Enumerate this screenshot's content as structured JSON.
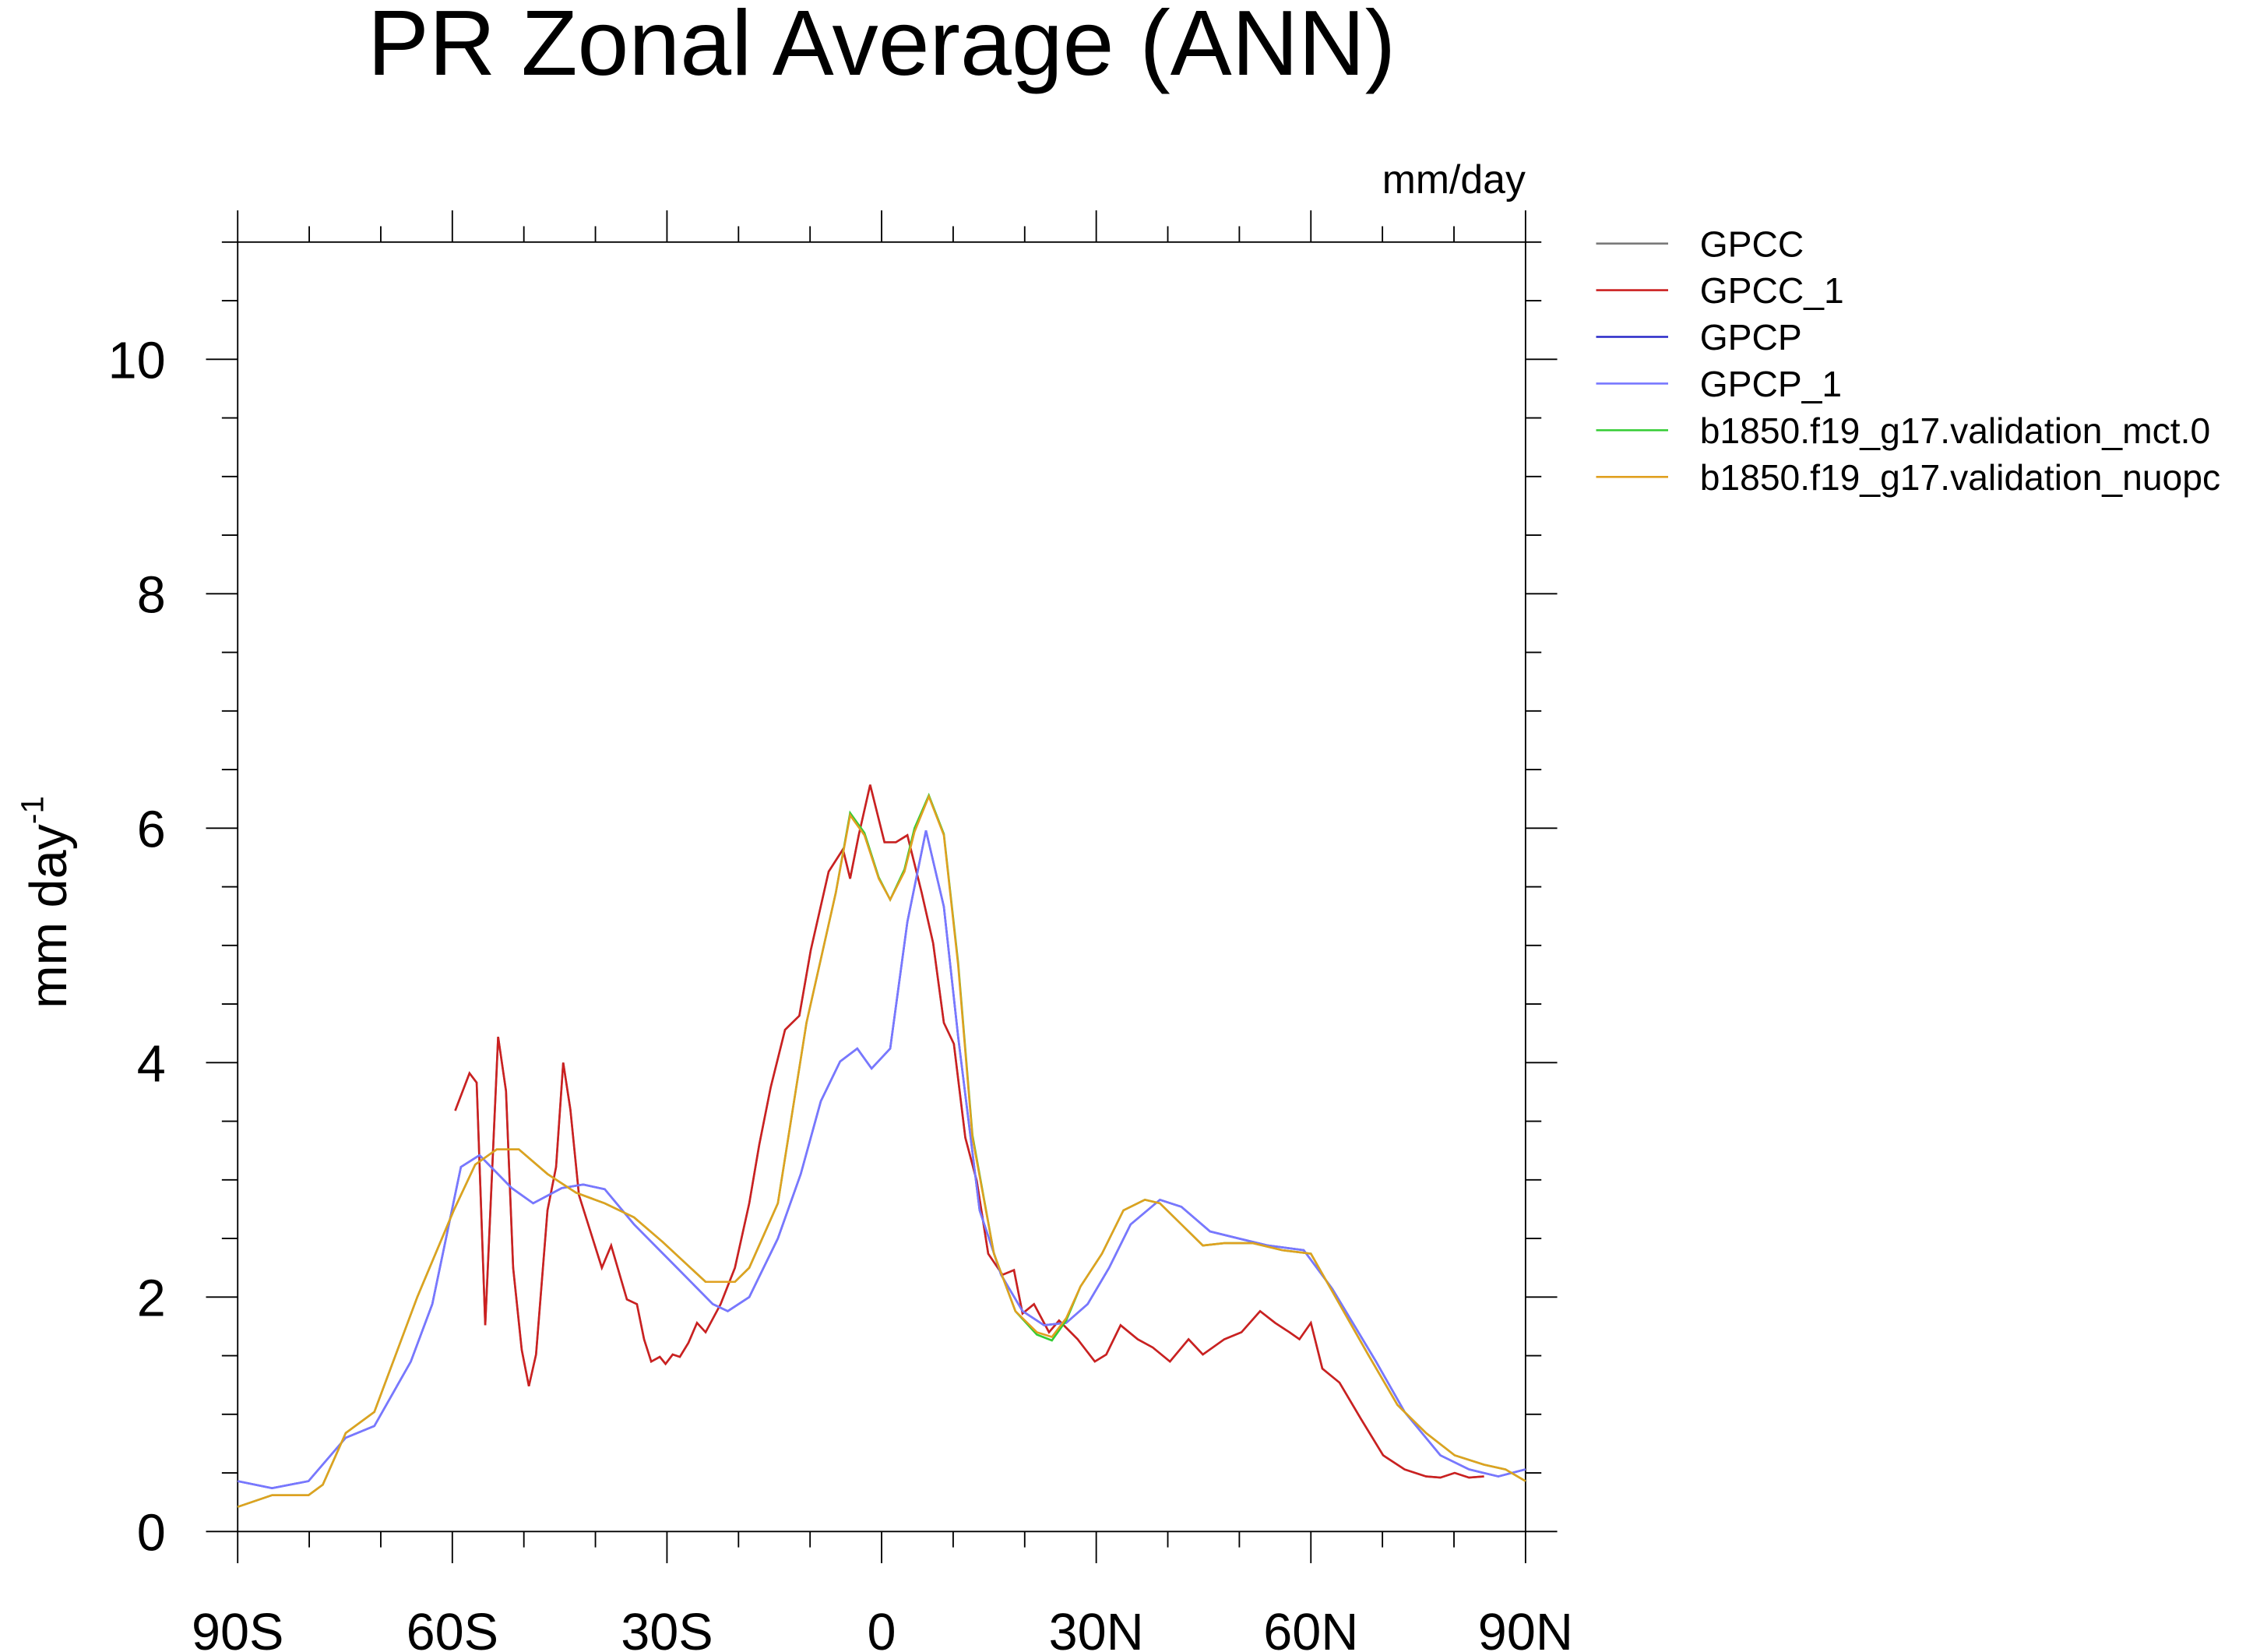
{
  "chart_data": {
    "type": "line",
    "title": "PR Zonal Average (ANN)",
    "units": "mm/day",
    "ylabel": "mm day",
    "ylabel_sup": "-1",
    "xlim": [
      -90,
      90
    ],
    "xticks": [
      {
        "value": -90,
        "label": "90S"
      },
      {
        "value": -60,
        "label": "60S"
      },
      {
        "value": -30,
        "label": "30S"
      },
      0,
      {
        "value": 30,
        "label": "30N"
      },
      {
        "value": 60,
        "label": "60N"
      },
      {
        "value": 90,
        "label": "90N"
      }
    ],
    "ylim": [
      0,
      11
    ],
    "yticks": [
      0,
      2,
      4,
      6,
      8,
      10
    ],
    "legend": "right",
    "series": [
      {
        "name": "GPCC",
        "color": "#7a7a7a",
        "x": [
          -59.6,
          -57.6,
          -56.6,
          -55.4,
          -53.6,
          -52.5,
          -51.5,
          -50.3,
          -49.3,
          -48.3,
          -46.7,
          -45.5,
          -44.5,
          -43.5,
          -42.3,
          -40.7,
          -39.1,
          -37.8,
          -35.6,
          -34.2,
          -33.2,
          -32.2,
          -31.0,
          -30.2,
          -29.2,
          -28.2,
          -27.0,
          -25.8,
          -24.6,
          -22.5,
          -20.5,
          -18.5,
          -17.1,
          -15.5,
          -13.5,
          -11.5,
          -9.9,
          -7.4,
          -5.4,
          -4.4,
          -3.2,
          -1.6,
          0.4,
          2.0,
          3.6,
          5.6,
          7.2,
          8.7,
          10.1,
          11.7,
          13.3,
          14.9,
          16.9,
          18.5,
          19.7,
          21.3,
          23.4,
          24.8,
          27.4,
          29.8,
          31.4,
          33.4,
          35.8,
          37.9,
          40.3,
          42.9,
          44.9,
          47.9,
          50.3,
          52.9,
          55.0,
          57.0,
          58.4,
          60.0,
          61.6,
          64.0,
          67.0,
          70.1,
          73.1,
          76.1,
          78.1,
          80.1,
          82.1,
          84.2
        ],
        "values": [
          3.59,
          3.91,
          3.83,
          1.76,
          4.22,
          3.76,
          2.25,
          1.55,
          1.24,
          1.51,
          2.74,
          3.11,
          4.0,
          3.6,
          2.87,
          2.56,
          2.25,
          2.44,
          1.98,
          1.94,
          1.64,
          1.45,
          1.49,
          1.43,
          1.51,
          1.49,
          1.61,
          1.78,
          1.7,
          1.94,
          2.25,
          2.8,
          3.3,
          3.79,
          4.28,
          4.4,
          4.96,
          5.63,
          5.82,
          5.57,
          5.94,
          6.37,
          5.88,
          5.88,
          5.94,
          5.45,
          5.02,
          4.34,
          4.16,
          3.36,
          2.99,
          2.37,
          2.19,
          2.23,
          1.86,
          1.94,
          1.7,
          1.8,
          1.64,
          1.45,
          1.51,
          1.76,
          1.64,
          1.57,
          1.45,
          1.64,
          1.51,
          1.64,
          1.7,
          1.88,
          1.78,
          1.7,
          1.64,
          1.78,
          1.39,
          1.27,
          0.96,
          0.65,
          0.53,
          0.47,
          0.46,
          0.5,
          0.46,
          0.47
        ]
      },
      {
        "name": "GPCC_1",
        "color": "#cc2020",
        "x": [
          -59.6,
          -57.6,
          -56.6,
          -55.4,
          -53.6,
          -52.5,
          -51.5,
          -50.3,
          -49.3,
          -48.3,
          -46.7,
          -45.5,
          -44.5,
          -43.5,
          -42.3,
          -40.7,
          -39.1,
          -37.8,
          -35.6,
          -34.2,
          -33.2,
          -32.2,
          -31.0,
          -30.2,
          -29.2,
          -28.2,
          -27.0,
          -25.8,
          -24.6,
          -22.5,
          -20.5,
          -18.5,
          -17.1,
          -15.5,
          -13.5,
          -11.5,
          -9.9,
          -7.4,
          -5.4,
          -4.4,
          -3.2,
          -1.6,
          0.4,
          2.0,
          3.6,
          5.6,
          7.2,
          8.7,
          10.1,
          11.7,
          13.3,
          14.9,
          16.9,
          18.5,
          19.7,
          21.3,
          23.4,
          24.8,
          27.4,
          29.8,
          31.4,
          33.4,
          35.8,
          37.9,
          40.3,
          42.9,
          44.9,
          47.9,
          50.3,
          52.9,
          55.0,
          57.0,
          58.4,
          60.0,
          61.6,
          64.0,
          67.0,
          70.1,
          73.1,
          76.1,
          78.1,
          80.1,
          82.1,
          84.2
        ],
        "values": [
          3.59,
          3.91,
          3.83,
          1.76,
          4.22,
          3.76,
          2.25,
          1.55,
          1.24,
          1.51,
          2.74,
          3.11,
          4.0,
          3.6,
          2.87,
          2.56,
          2.25,
          2.44,
          1.98,
          1.94,
          1.64,
          1.45,
          1.49,
          1.43,
          1.51,
          1.49,
          1.61,
          1.78,
          1.7,
          1.94,
          2.25,
          2.8,
          3.3,
          3.79,
          4.28,
          4.4,
          4.96,
          5.63,
          5.82,
          5.57,
          5.94,
          6.37,
          5.88,
          5.88,
          5.94,
          5.45,
          5.02,
          4.34,
          4.16,
          3.36,
          2.99,
          2.37,
          2.19,
          2.23,
          1.86,
          1.94,
          1.7,
          1.8,
          1.64,
          1.45,
          1.51,
          1.76,
          1.64,
          1.57,
          1.45,
          1.64,
          1.51,
          1.64,
          1.7,
          1.88,
          1.78,
          1.7,
          1.64,
          1.78,
          1.39,
          1.27,
          0.96,
          0.65,
          0.53,
          0.47,
          0.46,
          0.5,
          0.46,
          0.47
        ]
      },
      {
        "name": "GPCP",
        "color": "#2828c8",
        "x": [
          -90,
          -85.2,
          -80.1,
          -74.9,
          -70.9,
          -65.8,
          -62.8,
          -58.8,
          -56.2,
          -51.7,
          -48.7,
          -44.7,
          -41.7,
          -38.7,
          -34.6,
          -28.6,
          -23.6,
          -21.5,
          -18.5,
          -14.5,
          -11.3,
          -8.5,
          -5.8,
          -3.4,
          -1.4,
          1.2,
          3.6,
          6.2,
          8.7,
          10.7,
          13.7,
          16.7,
          19.7,
          22.7,
          25.8,
          28.8,
          31.8,
          34.8,
          38.9,
          41.9,
          45.9,
          49.9,
          54.0,
          59.0,
          63.0,
          69.1,
          73.1,
          78.1,
          82.1,
          86.2,
          90
        ],
        "values": [
          0.43,
          0.37,
          0.43,
          0.8,
          0.9,
          1.45,
          1.94,
          3.11,
          3.21,
          2.93,
          2.8,
          2.93,
          2.96,
          2.92,
          2.62,
          2.25,
          1.94,
          1.88,
          2.0,
          2.5,
          3.05,
          3.67,
          4.01,
          4.12,
          3.95,
          4.12,
          5.2,
          5.98,
          5.33,
          4.22,
          2.74,
          2.19,
          1.88,
          1.76,
          1.78,
          1.94,
          2.25,
          2.62,
          2.83,
          2.77,
          2.56,
          2.5,
          2.44,
          2.4,
          2.07,
          1.45,
          1.02,
          0.65,
          0.53,
          0.47,
          0.53
        ]
      },
      {
        "name": "GPCP_1",
        "color": "#7878ff",
        "x": [
          -90,
          -85.2,
          -80.1,
          -74.9,
          -70.9,
          -65.8,
          -62.8,
          -58.8,
          -56.2,
          -51.7,
          -48.7,
          -44.7,
          -41.7,
          -38.7,
          -34.6,
          -28.6,
          -23.6,
          -21.5,
          -18.5,
          -14.5,
          -11.3,
          -8.5,
          -5.8,
          -3.4,
          -1.4,
          1.2,
          3.6,
          6.2,
          8.7,
          10.7,
          13.7,
          16.7,
          19.7,
          22.7,
          25.8,
          28.8,
          31.8,
          34.8,
          38.9,
          41.9,
          45.9,
          49.9,
          54.0,
          59.0,
          63.0,
          69.1,
          73.1,
          78.1,
          82.1,
          86.2,
          90
        ],
        "values": [
          0.43,
          0.37,
          0.43,
          0.8,
          0.9,
          1.45,
          1.94,
          3.11,
          3.21,
          2.93,
          2.8,
          2.93,
          2.96,
          2.92,
          2.62,
          2.25,
          1.94,
          1.88,
          2.0,
          2.5,
          3.05,
          3.67,
          4.01,
          4.12,
          3.95,
          4.12,
          5.2,
          5.98,
          5.33,
          4.22,
          2.74,
          2.19,
          1.88,
          1.76,
          1.78,
          1.94,
          2.25,
          2.62,
          2.83,
          2.77,
          2.56,
          2.5,
          2.44,
          2.4,
          2.07,
          1.45,
          1.02,
          0.65,
          0.53,
          0.47,
          0.53
        ]
      },
      {
        "name": "b1850.f19_g17.validation_mct.0",
        "color": "#33cc33",
        "x": [
          -90,
          -85.2,
          -80.1,
          -78.1,
          -74.9,
          -70.9,
          -64.9,
          -59.8,
          -56.8,
          -53.8,
          -50.7,
          -46.7,
          -42.7,
          -38.7,
          -34.6,
          -30.6,
          -24.6,
          -20.5,
          -18.5,
          -14.5,
          -10.5,
          -6.4,
          -4.4,
          -2.4,
          -0.4,
          1.2,
          3.2,
          4.6,
          6.6,
          8.7,
          10.7,
          12.7,
          15.7,
          18.7,
          21.7,
          23.8,
          25.8,
          27.8,
          30.8,
          33.8,
          36.8,
          38.9,
          41.9,
          44.9,
          47.9,
          51.9,
          56.0,
          60.0,
          64.0,
          68.0,
          72.1,
          76.1,
          80.1,
          84.2,
          87.2,
          90
        ],
        "values": [
          0.21,
          0.31,
          0.31,
          0.4,
          0.84,
          1.02,
          2.0,
          2.74,
          3.13,
          3.26,
          3.26,
          3.05,
          2.89,
          2.8,
          2.68,
          2.47,
          2.13,
          2.13,
          2.25,
          2.8,
          4.34,
          5.45,
          6.13,
          5.96,
          5.58,
          5.39,
          5.65,
          6.0,
          6.28,
          5.95,
          4.85,
          3.38,
          2.37,
          1.88,
          1.68,
          1.63,
          1.8,
          2.09,
          2.37,
          2.74,
          2.83,
          2.8,
          2.62,
          2.44,
          2.46,
          2.46,
          2.4,
          2.37,
          1.94,
          1.51,
          1.08,
          0.84,
          0.65,
          0.57,
          0.53,
          0.43
        ]
      },
      {
        "name": "b1850.f19_g17.validation_nuopc",
        "color": "#e0a020",
        "x": [
          -90,
          -85.2,
          -80.1,
          -78.1,
          -74.9,
          -70.9,
          -64.9,
          -59.8,
          -56.8,
          -53.8,
          -50.7,
          -46.7,
          -42.7,
          -38.7,
          -34.6,
          -30.6,
          -24.6,
          -20.5,
          -18.5,
          -14.5,
          -10.5,
          -6.4,
          -4.4,
          -2.4,
          -0.4,
          1.2,
          3.2,
          4.6,
          6.6,
          8.7,
          10.7,
          12.7,
          15.7,
          18.7,
          21.7,
          23.8,
          25.8,
          27.8,
          30.8,
          33.8,
          36.8,
          38.9,
          41.9,
          44.9,
          47.9,
          51.9,
          56.0,
          60.0,
          64.0,
          68.0,
          72.1,
          76.1,
          80.1,
          84.2,
          87.2,
          90
        ],
        "values": [
          0.21,
          0.31,
          0.31,
          0.4,
          0.84,
          1.02,
          2.0,
          2.74,
          3.13,
          3.26,
          3.26,
          3.05,
          2.89,
          2.8,
          2.68,
          2.47,
          2.13,
          2.13,
          2.25,
          2.8,
          4.34,
          5.45,
          6.11,
          5.94,
          5.57,
          5.39,
          5.63,
          5.97,
          6.27,
          5.94,
          4.83,
          3.36,
          2.37,
          1.88,
          1.7,
          1.66,
          1.82,
          2.09,
          2.37,
          2.74,
          2.83,
          2.8,
          2.62,
          2.44,
          2.46,
          2.46,
          2.4,
          2.37,
          1.94,
          1.51,
          1.08,
          0.84,
          0.65,
          0.57,
          0.53,
          0.43
        ]
      }
    ]
  }
}
